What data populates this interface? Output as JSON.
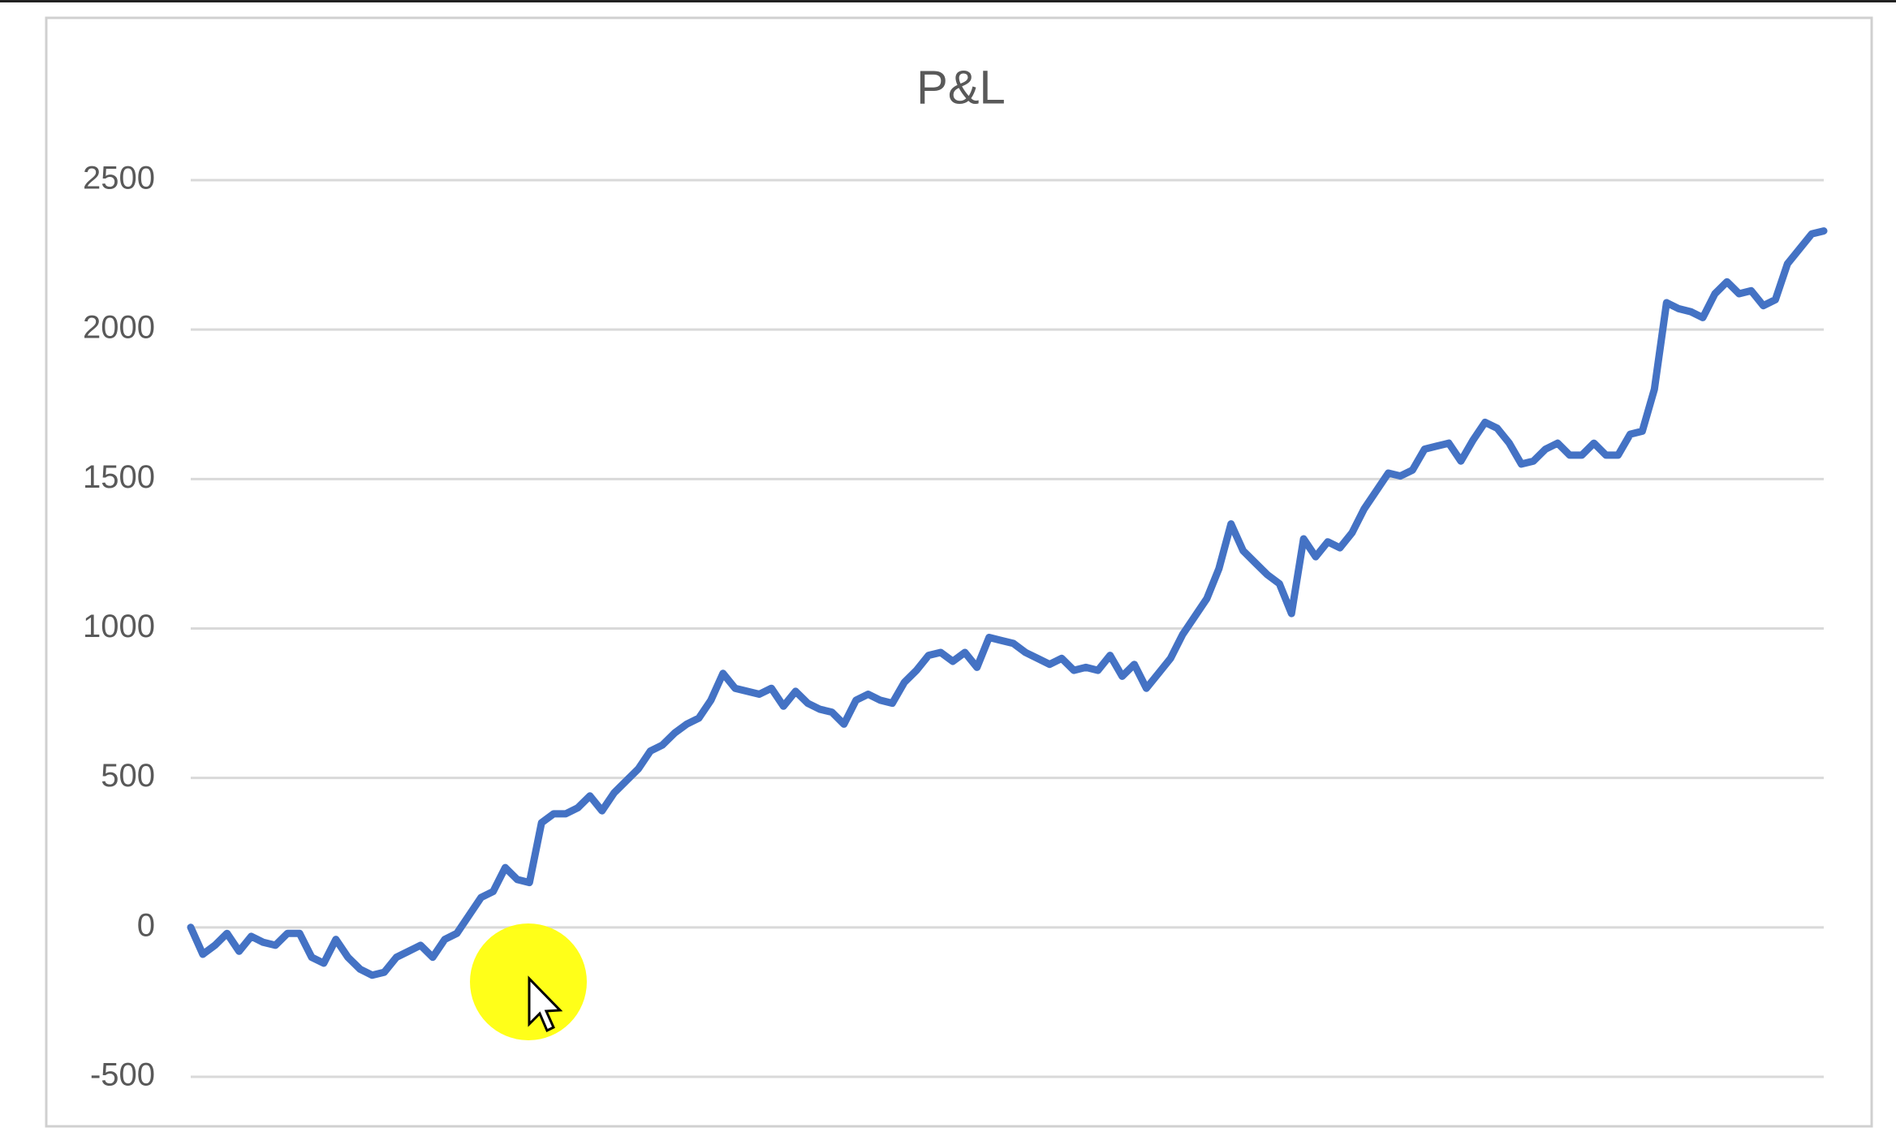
{
  "chart_data": {
    "type": "line",
    "title": "P&L",
    "values": [
      0,
      -90,
      -60,
      -20,
      -80,
      -30,
      -50,
      -60,
      -20,
      -20,
      -100,
      -120,
      -40,
      -100,
      -140,
      -160,
      -150,
      -100,
      -80,
      -60,
      -100,
      -40,
      -20,
      40,
      100,
      120,
      200,
      160,
      150,
      350,
      380,
      380,
      400,
      440,
      390,
      450,
      490,
      530,
      590,
      610,
      650,
      680,
      700,
      760,
      850,
      800,
      790,
      780,
      800,
      740,
      790,
      750,
      730,
      720,
      680,
      760,
      780,
      760,
      750,
      820,
      860,
      910,
      920,
      890,
      920,
      870,
      970,
      960,
      950,
      920,
      900,
      880,
      900,
      860,
      870,
      860,
      910,
      840,
      880,
      800,
      850,
      900,
      980,
      1040,
      1100,
      1200,
      1350,
      1260,
      1220,
      1180,
      1150,
      1050,
      1300,
      1240,
      1290,
      1270,
      1320,
      1400,
      1460,
      1520,
      1510,
      1530,
      1600,
      1610,
      1620,
      1560,
      1630,
      1690,
      1670,
      1620,
      1550,
      1560,
      1600,
      1620,
      1580,
      1580,
      1620,
      1580,
      1580,
      1650,
      1660,
      1800,
      2090,
      2070,
      2060,
      2040,
      2120,
      2160,
      2120,
      2130,
      2080,
      2100,
      2220,
      2270,
      2320,
      2330
    ],
    "color": "#4472c4",
    "ylim": [
      -500,
      2500
    ],
    "yticks": [
      -500,
      0,
      500,
      1000,
      1500,
      2000,
      2500
    ],
    "grid": true
  }
}
